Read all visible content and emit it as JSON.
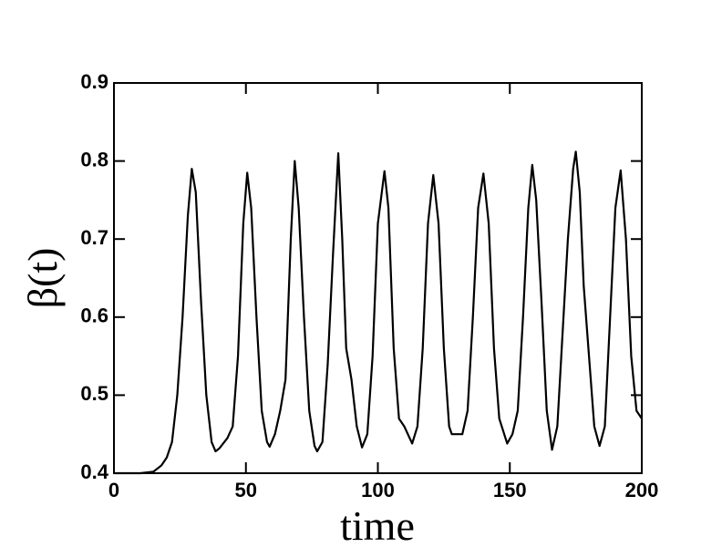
{
  "chart_data": {
    "type": "line",
    "xlabel": "time",
    "ylabel": "β(t)",
    "xlim": [
      0,
      200
    ],
    "xticks": [
      0,
      50,
      100,
      150,
      200
    ],
    "ylim": [
      0.4,
      0.9
    ],
    "yticks": [
      0.4,
      0.5,
      0.6,
      0.7,
      0.8,
      0.9
    ],
    "grid": false,
    "x": [
      0,
      10,
      15,
      18,
      20,
      22,
      24,
      26,
      28,
      29.5,
      31,
      33,
      35,
      37,
      38.5,
      40,
      43,
      45,
      47,
      49,
      50.5,
      52,
      54,
      56,
      58,
      59,
      61,
      63,
      65,
      67,
      68.5,
      70,
      72,
      74,
      76,
      77,
      79,
      81,
      83,
      85,
      86.5,
      88,
      90,
      92,
      94,
      96,
      98,
      100,
      102.5,
      104,
      106,
      108,
      110,
      113,
      115,
      117,
      119,
      121,
      123,
      125,
      127,
      128,
      132,
      134,
      136,
      138,
      140,
      142,
      144,
      146,
      149,
      151,
      153,
      155,
      157,
      158.5,
      160,
      162,
      164,
      166,
      168,
      170,
      172,
      174,
      175,
      176.5,
      178,
      180,
      182,
      184,
      186,
      188,
      190,
      192,
      194,
      196,
      198,
      200
    ],
    "series": [
      {
        "color": "#000000",
        "values": [
          0.4,
          0.4,
          0.402,
          0.41,
          0.42,
          0.44,
          0.5,
          0.6,
          0.73,
          0.79,
          0.76,
          0.62,
          0.5,
          0.44,
          0.428,
          0.432,
          0.445,
          0.46,
          0.55,
          0.72,
          0.785,
          0.74,
          0.6,
          0.48,
          0.44,
          0.434,
          0.45,
          0.48,
          0.52,
          0.7,
          0.8,
          0.74,
          0.6,
          0.48,
          0.435,
          0.428,
          0.44,
          0.54,
          0.68,
          0.81,
          0.7,
          0.56,
          0.52,
          0.46,
          0.433,
          0.45,
          0.55,
          0.72,
          0.787,
          0.74,
          0.56,
          0.47,
          0.46,
          0.438,
          0.46,
          0.56,
          0.72,
          0.782,
          0.72,
          0.56,
          0.46,
          0.45,
          0.45,
          0.48,
          0.6,
          0.74,
          0.784,
          0.72,
          0.56,
          0.47,
          0.438,
          0.45,
          0.48,
          0.6,
          0.74,
          0.795,
          0.75,
          0.62,
          0.48,
          0.43,
          0.46,
          0.58,
          0.7,
          0.79,
          0.812,
          0.76,
          0.64,
          0.55,
          0.46,
          0.435,
          0.46,
          0.6,
          0.74,
          0.788,
          0.7,
          0.55,
          0.48,
          0.47
        ]
      }
    ]
  }
}
